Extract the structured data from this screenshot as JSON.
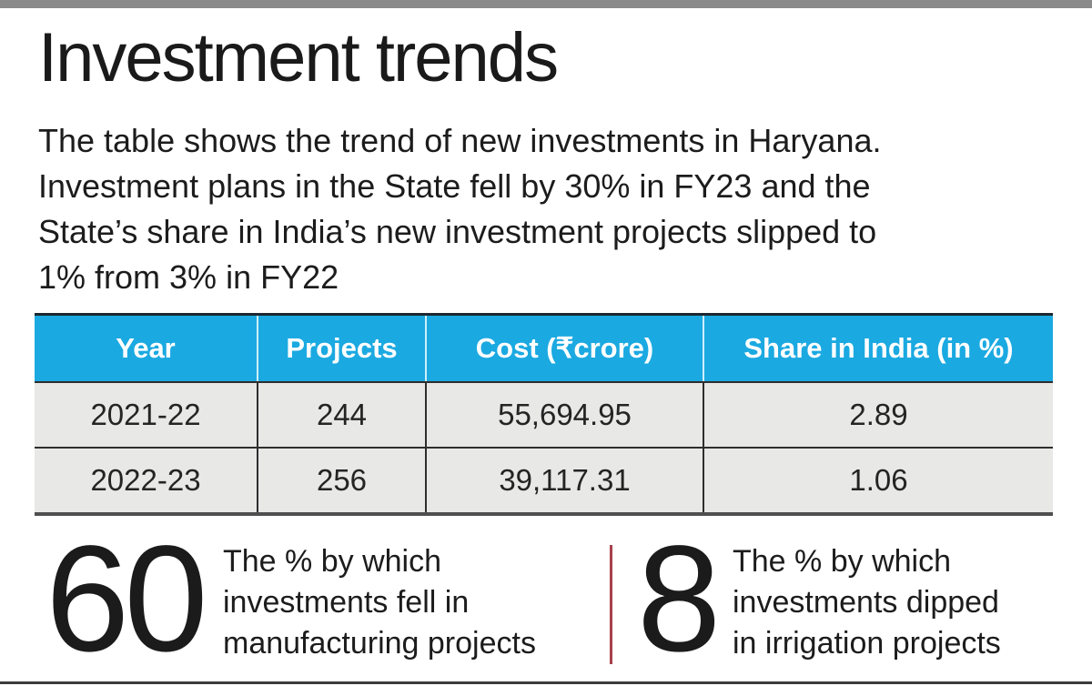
{
  "header": {
    "title": "Investment trends"
  },
  "description": {
    "lines": [
      "The table shows the trend of new investments in Haryana.",
      "Investment plans in the State fell by 30% in FY23 and the",
      "State’s share in India’s new investment projects slipped to",
      "1% from 3% in FY22"
    ]
  },
  "table": {
    "headers": [
      "Year",
      "Projects",
      "Cost (₹crore)",
      "Share in India (in %)"
    ],
    "rows": [
      [
        "2021-22",
        "244",
        "55,694.95",
        "2.89"
      ],
      [
        "2022-23",
        "256",
        "39,117.31",
        "1.06"
      ]
    ]
  },
  "stats": [
    {
      "value": "60",
      "label": "The % by which investments fell in manufacturing projects",
      "label_lines": [
        "The % by which",
        "investments fell in",
        "manufacturing projects"
      ]
    },
    {
      "value": "8",
      "label": "The % by which investments dipped in irrigation projects",
      "label_lines": [
        "The % by which",
        "investments dipped",
        "in irrigation projects"
      ]
    }
  ],
  "colors": {
    "table_header_blue": "#1ba9e1",
    "table_row_gray": "#e8e8e7",
    "table_border_dark": "#2e2e2e",
    "stat_divider_red": "#a8404c",
    "top_bar_gray": "#8a8a8a",
    "bottom_rule_gray": "#3d3d3d"
  },
  "chart_data": {
    "type": "table",
    "title": "Investment trends",
    "subtitle": "The table shows the trend of new investments in Haryana. Investment plans in the State fell by 30% in FY23 and the State’s share in India’s new investment projects slipped to 1% from 3% in FY22",
    "columns": [
      "Year",
      "Projects",
      "Cost (₹crore)",
      "Share in India (in %)"
    ],
    "rows": [
      [
        "2021-22",
        244,
        55694.95,
        2.89
      ],
      [
        "2022-23",
        256,
        39117.31,
        1.06
      ]
    ],
    "annotations": [
      {
        "value": 60,
        "text": "The % by which investments fell in manufacturing projects"
      },
      {
        "value": 8,
        "text": "The % by which investments dipped in irrigation projects"
      }
    ]
  }
}
